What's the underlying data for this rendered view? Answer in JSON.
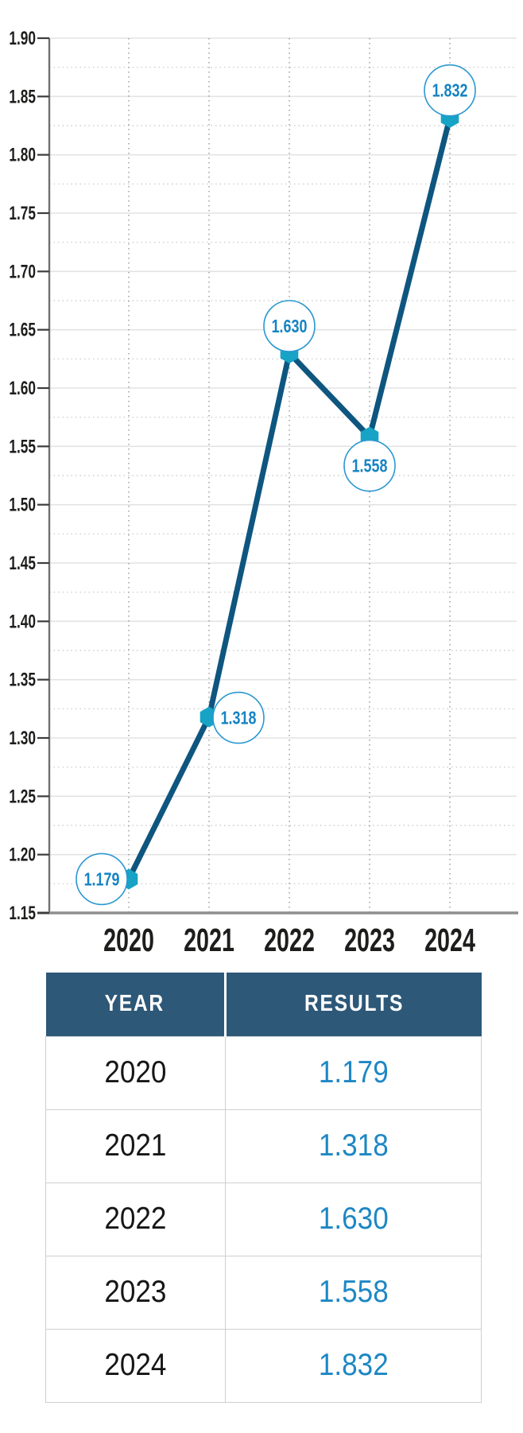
{
  "chart_data": {
    "type": "line",
    "x": [
      "2020",
      "2021",
      "2022",
      "2023",
      "2024"
    ],
    "series": [
      {
        "name": "Results",
        "values": [
          1.179,
          1.318,
          1.63,
          1.558,
          1.832
        ]
      }
    ],
    "point_labels": [
      "1.179",
      "1.318",
      "1.630",
      "1.558",
      "1.832"
    ],
    "point_label_positions": [
      "left",
      "right",
      "top",
      "bottom",
      "top"
    ],
    "title": "",
    "xlabel": "",
    "ylabel": "",
    "ylim": [
      1.15,
      1.9
    ],
    "y_major_step": 0.05,
    "y_minor_step": 0.025,
    "y_tick_labels": [
      "1.90",
      "1.85",
      "1.80",
      "1.75",
      "1.70",
      "1.65",
      "1.60",
      "1.55",
      "1.50",
      "1.45",
      "1.40",
      "1.35",
      "1.30",
      "1.25",
      "1.20",
      "1.15"
    ],
    "grid": "major solid, minor dotted, vertical dotted per year",
    "legend_position": "none",
    "marker_shape": "hexagon",
    "point_label_style": "circled"
  },
  "table": {
    "columns": [
      "YEAR",
      "RESULTS"
    ],
    "rows": [
      {
        "year": "2020",
        "result": "1.179"
      },
      {
        "year": "2021",
        "result": "1.318"
      },
      {
        "year": "2022",
        "result": "1.630"
      },
      {
        "year": "2023",
        "result": "1.558"
      },
      {
        "year": "2024",
        "result": "1.832"
      }
    ]
  },
  "colors": {
    "line": "#0e567f",
    "marker": "#17a3c6",
    "circle_stroke": "#2a97d1",
    "point_label_text": "#1583c4",
    "table_header_bg": "#2d5878",
    "table_header_text": "#ffffff",
    "table_value_text": "#1d87c5",
    "axis_text": "#1d1d1b"
  }
}
